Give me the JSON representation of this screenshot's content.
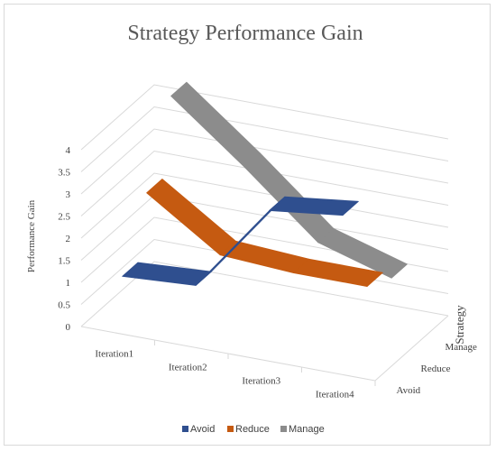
{
  "chart_data": {
    "type": "line",
    "title": "Strategy Performance Gain",
    "ylabel": "Performance Gain",
    "zlabel": "Strategy",
    "categories": [
      "Iteration1",
      "Iteration2",
      "Iteration3",
      "Iteration4"
    ],
    "depth_categories": [
      "Avoid",
      "Reduce",
      "Manage"
    ],
    "y_ticks": [
      "0",
      "0.5",
      "1",
      "1.5",
      "2",
      "2.5",
      "3",
      "3.5",
      "4"
    ],
    "ylim": [
      0,
      4
    ],
    "grid": true,
    "legend_position": "bottom",
    "series": [
      {
        "name": "Avoid",
        "values": [
          1.2,
          1.3,
          3.3,
          3.5
        ],
        "color": "#2F4F8F"
      },
      {
        "name": "Reduce",
        "values": [
          2.6,
          1.5,
          1.4,
          1.4
        ],
        "color": "#C55A11"
      },
      {
        "name": "Manage",
        "values": [
          4.3,
          3.0,
          1.6,
          1.1
        ],
        "color": "#8C8C8C"
      }
    ]
  }
}
